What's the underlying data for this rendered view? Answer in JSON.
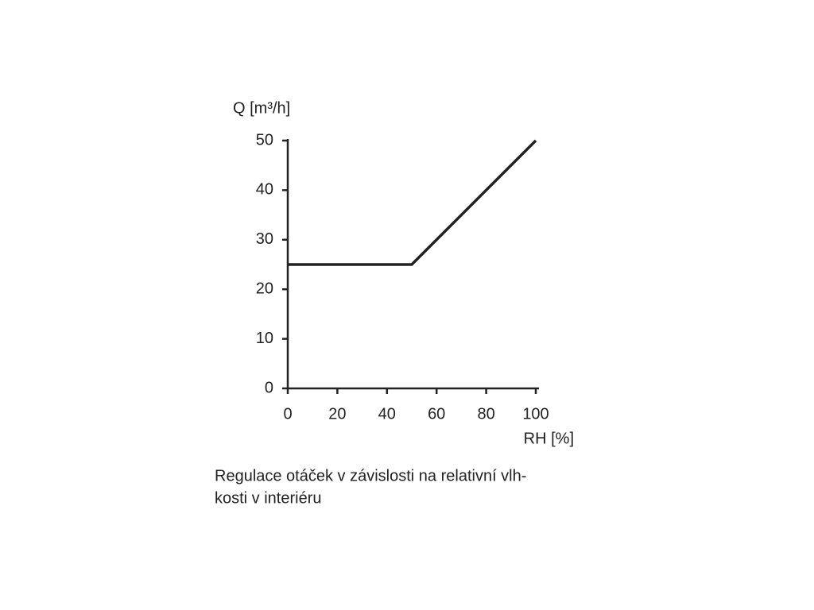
{
  "chart_data": {
    "type": "line",
    "y_label": "Q [m³/h]",
    "x_label": "RH [%]",
    "caption": [
      "Regulace otáček v závislosti na relativní vlh-",
      "kosti v interiéru"
    ],
    "x": [
      0,
      50,
      100
    ],
    "values": [
      25,
      25,
      50
    ],
    "color": "#222222",
    "xlim": [
      0,
      100
    ],
    "xticks": [
      0,
      20,
      40,
      60,
      80,
      100
    ],
    "ylim": [
      0,
      50
    ],
    "yticks": [
      0,
      10,
      20,
      30,
      40,
      50
    ],
    "grid": false
  }
}
